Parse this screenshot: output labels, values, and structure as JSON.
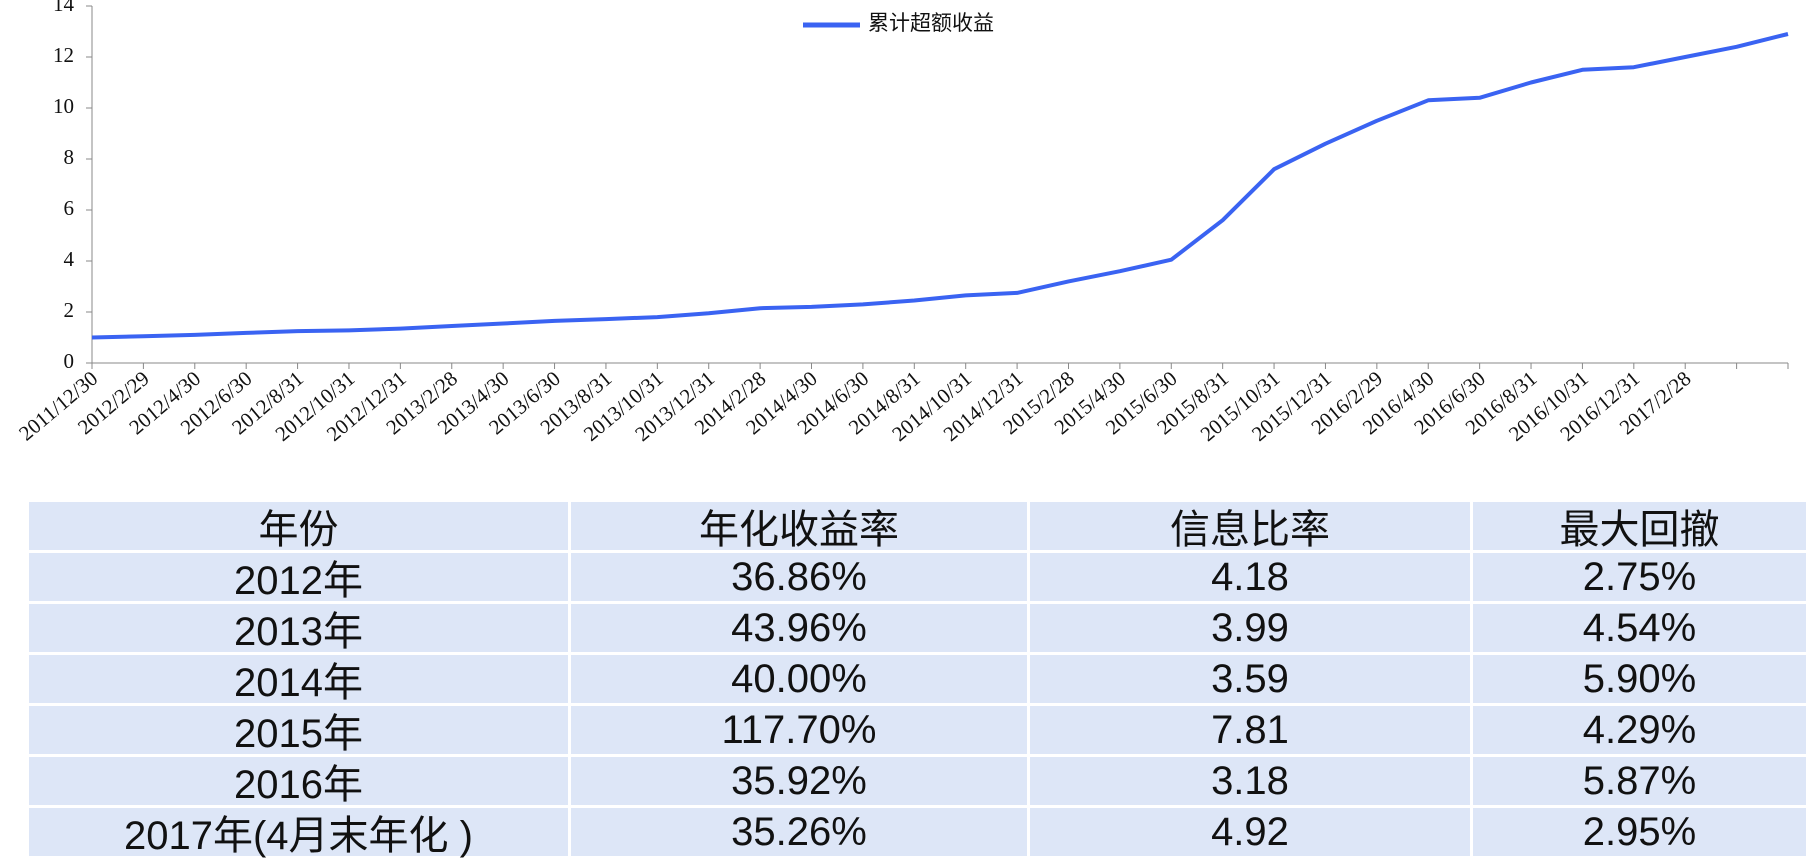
{
  "chart_data": {
    "type": "line",
    "categories": [
      "2011/12/30",
      "2012/2/29",
      "2012/4/30",
      "2012/6/30",
      "2012/8/31",
      "2012/10/31",
      "2012/12/31",
      "2013/2/28",
      "2013/4/30",
      "2013/6/30",
      "2013/8/31",
      "2013/10/31",
      "2013/12/31",
      "2014/2/28",
      "2014/4/30",
      "2014/6/30",
      "2014/8/31",
      "2014/10/31",
      "2014/12/31",
      "2015/2/28",
      "2015/4/30",
      "2015/6/30",
      "2015/8/31",
      "2015/10/31",
      "2015/12/31",
      "2016/2/29",
      "2016/4/30",
      "2016/6/30",
      "2016/8/31",
      "2016/10/31",
      "2016/12/31",
      "2017/2/28",
      null,
      null
    ],
    "series": [
      {
        "name": "累计超额收益",
        "color": "#3a63f2",
        "values": [
          1.0,
          1.05,
          1.1,
          1.18,
          1.25,
          1.28,
          1.35,
          1.45,
          1.55,
          1.65,
          1.72,
          1.8,
          1.95,
          2.15,
          2.2,
          2.3,
          2.45,
          2.65,
          2.75,
          3.2,
          3.6,
          4.05,
          5.6,
          7.6,
          8.6,
          9.5,
          10.3,
          10.4,
          11.0,
          11.5,
          11.6,
          12.0,
          12.4,
          12.9
        ]
      }
    ],
    "ylim": [
      0,
      14
    ],
    "yticks": [
      0,
      2,
      4,
      6,
      8,
      10,
      12,
      14
    ],
    "grid": false,
    "legend": "top"
  },
  "table": {
    "header": [
      "年份",
      "年化收益率",
      "信息比率",
      "最大回撤"
    ],
    "rows": [
      [
        "2012年",
        "36.86%",
        "4.18",
        "2.75%"
      ],
      [
        "2013年",
        "43.96%",
        "3.99",
        "4.54%"
      ],
      [
        "2014年",
        "40.00%",
        "3.59",
        "5.90%"
      ],
      [
        "2015年",
        "117.70%",
        "7.81",
        "4.29%"
      ],
      [
        "2016年",
        "35.92%",
        "3.18",
        "5.87%"
      ],
      [
        "2017年(4月末年化 )",
        "35.26%",
        "4.92",
        "2.95%"
      ]
    ]
  }
}
